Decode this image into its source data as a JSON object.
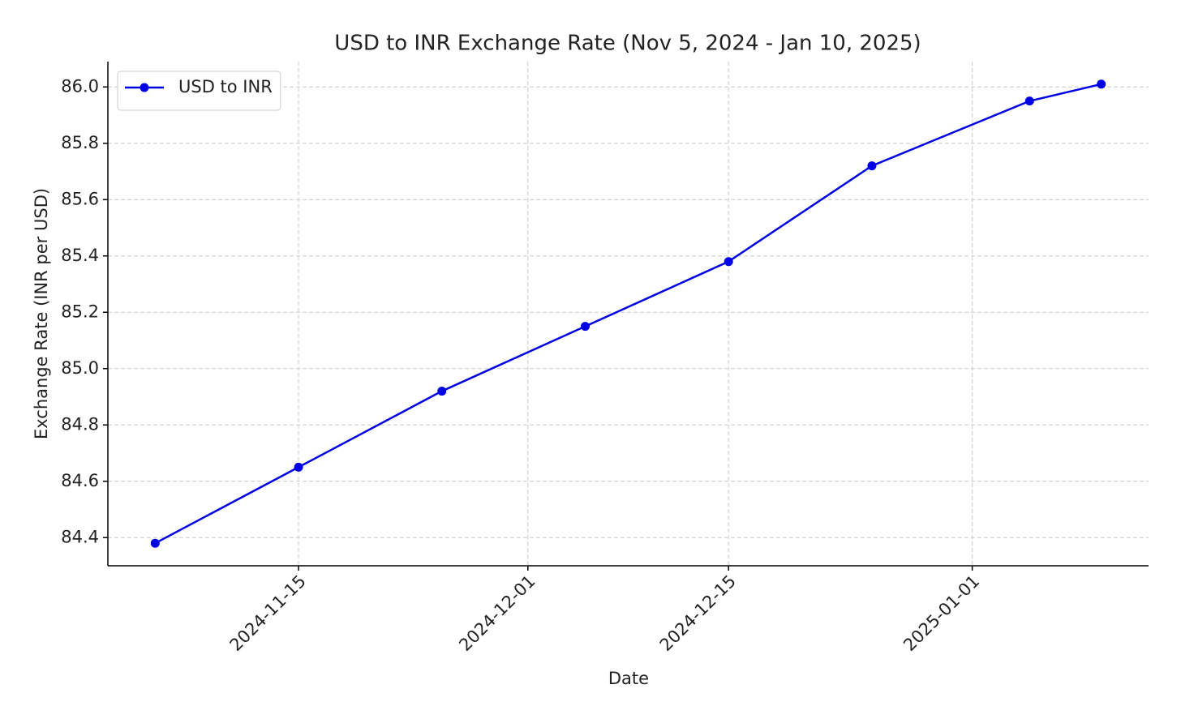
{
  "chart_data": {
    "type": "line",
    "title": "USD to INR Exchange Rate (Nov 5, 2024 - Jan 10, 2025)",
    "x_label": "Date",
    "y_label": "Exchange Rate (INR per USD)",
    "x": [
      "2024-11-05",
      "2024-11-15",
      "2024-11-25",
      "2024-12-05",
      "2024-12-15",
      "2024-12-25",
      "2025-01-05",
      "2025-01-10"
    ],
    "series": [
      {
        "name": "USD to INR",
        "color": "#0000e6",
        "values": [
          84.38,
          84.65,
          84.92,
          85.15,
          85.38,
          85.72,
          85.95,
          86.01
        ]
      }
    ],
    "xlim": [
      "2024-11-01T16:48Z",
      "2025-01-13T07:12Z"
    ],
    "xticks": [
      "2024-11-15",
      "2024-12-01",
      "2024-12-15",
      "2025-01-01"
    ],
    "ylim": [
      84.3,
      86.09
    ],
    "yticks": [
      84.4,
      84.6,
      84.8,
      {
        "value": 85,
        "label": "85.0"
      },
      85.2,
      85.4,
      85.6,
      85.8,
      {
        "value": 86,
        "label": "86.0"
      }
    ],
    "grid": true,
    "legend": "upper left"
  }
}
